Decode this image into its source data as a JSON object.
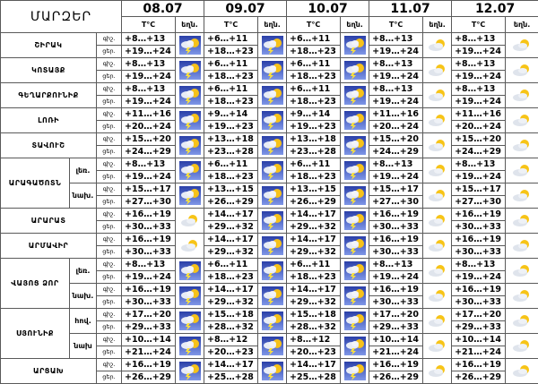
{
  "header": {
    "corner": "ՄԱՐԶԵՐ",
    "dates": [
      "08.07",
      "09.07",
      "10.07",
      "11.07",
      "12.07"
    ],
    "temp_label": "T°C",
    "weather_label": "եղն.",
    "night_label": "գիշ.",
    "day_label": "ցեր."
  },
  "rows": [
    {
      "region": "ՇԻՐԱԿ",
      "alt": "",
      "days": [
        {
          "night": "+8…+13",
          "day": "+19…+24",
          "icon": "storm-icon"
        },
        {
          "night": "+6…+11",
          "day": "+18…+23",
          "icon": "storm-icon"
        },
        {
          "night": "+6…+11",
          "day": "+18…+23",
          "icon": "storm-icon"
        },
        {
          "night": "+8…+13",
          "day": "+19…+24",
          "icon": "partly-cloudy-icon"
        },
        {
          "night": "+8…+13",
          "day": "+19…+24",
          "icon": "partly-cloudy-icon"
        }
      ]
    },
    {
      "region": "ԿՈՏԱՅՔ",
      "alt": "",
      "days": [
        {
          "night": "+8…+13",
          "day": "+19…+24",
          "icon": "storm-icon"
        },
        {
          "night": "+6…+11",
          "day": "+18…+23",
          "icon": "storm-icon"
        },
        {
          "night": "+6…+11",
          "day": "+18…+23",
          "icon": "storm-icon"
        },
        {
          "night": "+8…+13",
          "day": "+19…+24",
          "icon": "partly-cloudy-icon"
        },
        {
          "night": "+8…+13",
          "day": "+19…+24",
          "icon": "partly-cloudy-icon"
        }
      ]
    },
    {
      "region": "ԳԵՂԱՐՔՈՒՆԻՔ",
      "alt": "",
      "days": [
        {
          "night": "+8…+13",
          "day": "+19…+24",
          "icon": "storm-icon"
        },
        {
          "night": "+6…+11",
          "day": "+18…+23",
          "icon": "storm-icon"
        },
        {
          "night": "+6…+11",
          "day": "+18…+23",
          "icon": "storm-icon"
        },
        {
          "night": "+8…+13",
          "day": "+19…+24",
          "icon": "partly-cloudy-icon"
        },
        {
          "night": "+8…+13",
          "day": "+19…+24",
          "icon": "partly-cloudy-icon"
        }
      ]
    },
    {
      "region": "ԼՈՌԻ",
      "alt": "",
      "days": [
        {
          "night": "+11…+16",
          "day": "+20…+24",
          "icon": "storm-icon"
        },
        {
          "night": "+9…+14",
          "day": "+19…+23",
          "icon": "storm-icon"
        },
        {
          "night": "+9…+14",
          "day": "+19…+23",
          "icon": "storm-icon"
        },
        {
          "night": "+11…+16",
          "day": "+20…+24",
          "icon": "partly-cloudy-icon"
        },
        {
          "night": "+11…+16",
          "day": "+20…+24",
          "icon": "partly-cloudy-icon"
        }
      ]
    },
    {
      "region": "ՏԱՎՈՒՇ",
      "alt": "",
      "days": [
        {
          "night": "+15…+20",
          "day": "+24…+29",
          "icon": "storm-icon"
        },
        {
          "night": "+13…+18",
          "day": "+23…+28",
          "icon": "storm-icon"
        },
        {
          "night": "+13…+18",
          "day": "+23…+28",
          "icon": "storm-icon"
        },
        {
          "night": "+15…+20",
          "day": "+24…+29",
          "icon": "partly-cloudy-icon"
        },
        {
          "night": "+15…+20",
          "day": "+24…+29",
          "icon": "partly-cloudy-icon"
        }
      ]
    },
    {
      "region": "ԱՐԱԳԱԾՈՏՆ",
      "alt": "լեռ.",
      "days": [
        {
          "night": "+8…+13",
          "day": "+19…+24",
          "icon": "storm-icon"
        },
        {
          "night": "+6…+11",
          "day": "+18…+23",
          "icon": "storm-icon"
        },
        {
          "night": "+6…+11",
          "day": "+18…+23",
          "icon": "storm-icon"
        },
        {
          "night": "+8…+13",
          "day": "+19…+24",
          "icon": "partly-cloudy-icon"
        },
        {
          "night": "+8…+13",
          "day": "+19…+24",
          "icon": "partly-cloudy-icon"
        }
      ]
    },
    {
      "region": "",
      "alt": "նախ.",
      "days": [
        {
          "night": "+15…+17",
          "day": "+27…+30",
          "icon": "storm-icon"
        },
        {
          "night": "+13…+15",
          "day": "+26…+29",
          "icon": "storm-icon"
        },
        {
          "night": "+13…+15",
          "day": "+26…+29",
          "icon": "storm-icon"
        },
        {
          "night": "+15…+17",
          "day": "+27…+30",
          "icon": "partly-cloudy-icon"
        },
        {
          "night": "+15…+17",
          "day": "+27…+30",
          "icon": "partly-cloudy-icon"
        }
      ]
    },
    {
      "region": "ԱՐԱՐԱՏ",
      "alt": "",
      "days": [
        {
          "night": "+16…+19",
          "day": "+30…+33",
          "icon": "partly-cloudy-icon"
        },
        {
          "night": "+14…+17",
          "day": "+29…+32",
          "icon": "storm-icon"
        },
        {
          "night": "+14…+17",
          "day": "+29…+32",
          "icon": "storm-icon"
        },
        {
          "night": "+16…+19",
          "day": "+30…+33",
          "icon": "partly-cloudy-icon"
        },
        {
          "night": "+16…+19",
          "day": "+30…+33",
          "icon": "partly-cloudy-icon"
        }
      ]
    },
    {
      "region": "ԱՐՄԱՎԻՐ",
      "alt": "",
      "days": [
        {
          "night": "+16…+19",
          "day": "+30…+33",
          "icon": "partly-cloudy-icon"
        },
        {
          "night": "+14…+17",
          "day": "+29…+32",
          "icon": "storm-icon"
        },
        {
          "night": "+14…+17",
          "day": "+29…+32",
          "icon": "storm-icon"
        },
        {
          "night": "+16…+19",
          "day": "+30…+33",
          "icon": "partly-cloudy-icon"
        },
        {
          "night": "+16…+19",
          "day": "+30…+33",
          "icon": "partly-cloudy-icon"
        }
      ]
    },
    {
      "region": "ՎԱՅՈՑ ՁՈՐ",
      "alt": "լեռ.",
      "days": [
        {
          "night": "+8…+13",
          "day": "+19…+24",
          "icon": "storm-icon"
        },
        {
          "night": "+6…+11",
          "day": "+18…+23",
          "icon": "storm-icon"
        },
        {
          "night": "+6…+11",
          "day": "+18…+23",
          "icon": "storm-icon"
        },
        {
          "night": "+8…+13",
          "day": "+19…+24",
          "icon": "partly-cloudy-icon"
        },
        {
          "night": "+8…+13",
          "day": "+19…+24",
          "icon": "partly-cloudy-icon"
        }
      ]
    },
    {
      "region": "",
      "alt": "նախ.",
      "days": [
        {
          "night": "+16…+19",
          "day": "+30…+33",
          "icon": "storm-icon"
        },
        {
          "night": "+14…+17",
          "day": "+29…+32",
          "icon": "storm-icon"
        },
        {
          "night": "+14…+17",
          "day": "+29…+32",
          "icon": "storm-icon"
        },
        {
          "night": "+16…+19",
          "day": "+30…+33",
          "icon": "partly-cloudy-icon"
        },
        {
          "night": "+16…+19",
          "day": "+30…+33",
          "icon": "partly-cloudy-icon"
        }
      ]
    },
    {
      "region": "ՍՅՈՒՆԻՔ",
      "alt": "հով.",
      "days": [
        {
          "night": "+17…+20",
          "day": "+29…+33",
          "icon": "storm-icon"
        },
        {
          "night": "+15…+18",
          "day": "+28…+32",
          "icon": "storm-icon"
        },
        {
          "night": "+15…+18",
          "day": "+28…+32",
          "icon": "storm-icon"
        },
        {
          "night": "+17…+20",
          "day": "+29…+33",
          "icon": "partly-cloudy-icon"
        },
        {
          "night": "+17…+20",
          "day": "+29…+33",
          "icon": "partly-cloudy-icon"
        }
      ]
    },
    {
      "region": "",
      "alt": "նախ",
      "days": [
        {
          "night": "+10…+14",
          "day": "+21…+24",
          "icon": "storm-icon"
        },
        {
          "night": "+8…+12",
          "day": "+20…+23",
          "icon": "storm-icon"
        },
        {
          "night": "+8…+12",
          "day": "+20…+23",
          "icon": "storm-icon"
        },
        {
          "night": "+10…+14",
          "day": "+21…+24",
          "icon": "partly-cloudy-icon"
        },
        {
          "night": "+10…+14",
          "day": "+21…+24",
          "icon": "partly-cloudy-icon"
        }
      ]
    },
    {
      "region": "ԱՐՑԱԽ",
      "alt": "",
      "days": [
        {
          "night": "+16…+19",
          "day": "+26…+29",
          "icon": "storm-icon"
        },
        {
          "night": "+14…+17",
          "day": "+25…+28",
          "icon": "storm-icon"
        },
        {
          "night": "+14…+17",
          "day": "+25…+28",
          "icon": "storm-icon"
        },
        {
          "night": "+16…+19",
          "day": "+26…+29",
          "icon": "partly-cloudy-icon"
        },
        {
          "night": "+16…+19",
          "day": "+26…+29",
          "icon": "partly-cloudy-icon"
        }
      ]
    }
  ]
}
